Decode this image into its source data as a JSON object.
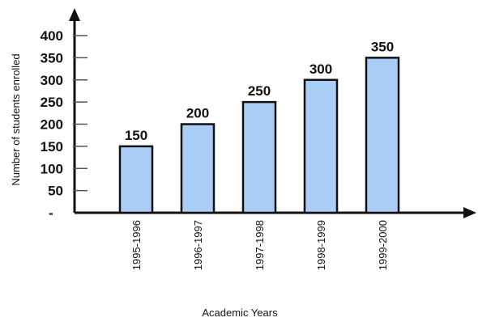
{
  "chart_data": {
    "type": "bar",
    "title": "",
    "xlabel": "Academic Years",
    "ylabel": "Number of students enrolled",
    "categories": [
      "1995-1996",
      "1996-1997",
      "1997-1998",
      "1998-1999",
      "1999-2000"
    ],
    "values": [
      150,
      200,
      250,
      300,
      350
    ],
    "value_labels": [
      "150",
      "200",
      "250",
      "300",
      "350"
    ],
    "ylim": [
      0,
      400
    ],
    "yticks": [
      50,
      100,
      150,
      200,
      250,
      300,
      350,
      400
    ],
    "ytick_labels": [
      "50",
      "100",
      "150",
      "200",
      "250",
      "300",
      "350",
      "400"
    ],
    "origin_label": "-",
    "grid": false,
    "colors": {
      "bar_fill": "#aacdf5",
      "bar_stroke": "#111111",
      "axis": "#111111"
    }
  }
}
